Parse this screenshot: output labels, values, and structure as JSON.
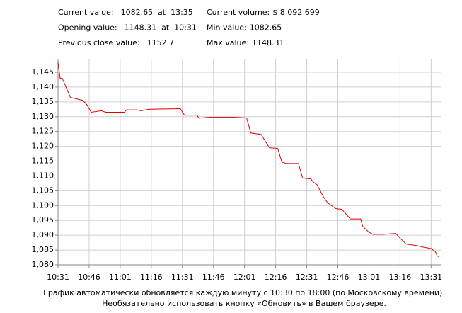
{
  "header": {
    "items": [
      {
        "label": "Current value:",
        "value": "1082.65  at  13:35"
      },
      {
        "label": "Current volume:",
        "value": "$ 8 092 699"
      },
      {
        "label": "Opening value:",
        "value": "1148.31  at  10:31"
      },
      {
        "label": "Min value:",
        "value": "1082.65"
      },
      {
        "label": "Previous close value:",
        "value": "1152.7"
      },
      {
        "label": "Max value:",
        "value": "1148.31"
      }
    ]
  },
  "chart_data": {
    "type": "line",
    "x": [
      "10:31",
      "10:32",
      "10:33",
      "10:37",
      "10:43",
      "10:45",
      "10:47",
      "10:52",
      "10:54",
      "11:03",
      "11:04",
      "11:09",
      "11:11",
      "11:15",
      "11:30",
      "11:32",
      "11:38",
      "11:39",
      "11:44",
      "11:56",
      "12:02",
      "12:04",
      "12:09",
      "12:13",
      "12:17",
      "12:19",
      "12:21",
      "12:27",
      "12:29",
      "12:33",
      "12:34",
      "12:36",
      "12:39",
      "12:41",
      "12:45",
      "12:48",
      "12:52",
      "12:57",
      "12:58",
      "13:01",
      "13:03",
      "13:08",
      "13:14",
      "13:16",
      "13:19",
      "13:24",
      "13:27",
      "13:31",
      "13:33",
      "13:34",
      "13:35"
    ],
    "series": [
      {
        "name": "Value",
        "color": "#e00000",
        "values": [
          1148.31,
          1143,
          1143,
          1136.5,
          1135.5,
          1134,
          1131.5,
          1132,
          1131.5,
          1131.5,
          1132.3,
          1132.3,
          1132,
          1132.5,
          1132.7,
          1130.5,
          1130.5,
          1129.5,
          1129.8,
          1129.8,
          1129.6,
          1124.5,
          1124,
          1119.5,
          1119.3,
          1114.7,
          1114.2,
          1114.2,
          1109.3,
          1109,
          1108,
          1107,
          1103,
          1101,
          1099,
          1098.7,
          1095.5,
          1095.5,
          1093,
          1091,
          1090.3,
          1090.3,
          1090.6,
          1089,
          1087,
          1086.5,
          1086,
          1085.5,
          1084.5,
          1083,
          1082.65
        ]
      }
    ],
    "xlim": [
      "10:31",
      "13:36"
    ],
    "xticks": [
      "10:31",
      "10:46",
      "11:01",
      "11:16",
      "11:31",
      "11:46",
      "12:01",
      "12:16",
      "12:31",
      "12:46",
      "13:01",
      "13:16",
      "13:31"
    ],
    "ylim": [
      1080,
      1149.3
    ],
    "yticks": [
      {
        "value": 1080,
        "label": "1,080"
      },
      {
        "value": 1085,
        "label": "1,085"
      },
      {
        "value": 1090,
        "label": "1,090"
      },
      {
        "value": 1095,
        "label": "1,095"
      },
      {
        "value": 1100,
        "label": "1,100"
      },
      {
        "value": 1105,
        "label": "1,105"
      },
      {
        "value": 1110,
        "label": "1,110"
      },
      {
        "value": 1115,
        "label": "1,115"
      },
      {
        "value": 1120,
        "label": "1,120"
      },
      {
        "value": 1125,
        "label": "1,125"
      },
      {
        "value": 1130,
        "label": "1,130"
      },
      {
        "value": 1135,
        "label": "1,135"
      },
      {
        "value": 1140,
        "label": "1,140"
      },
      {
        "value": 1145,
        "label": "1,145"
      }
    ],
    "grid": true
  },
  "footer": {
    "lines": [
      "График автоматически обновляется каждую минуту с 10:30 по 18:00 (по Московскому времени).",
      "Необязательно использовать кнопку «Обновить» в Вашем браузере."
    ]
  }
}
